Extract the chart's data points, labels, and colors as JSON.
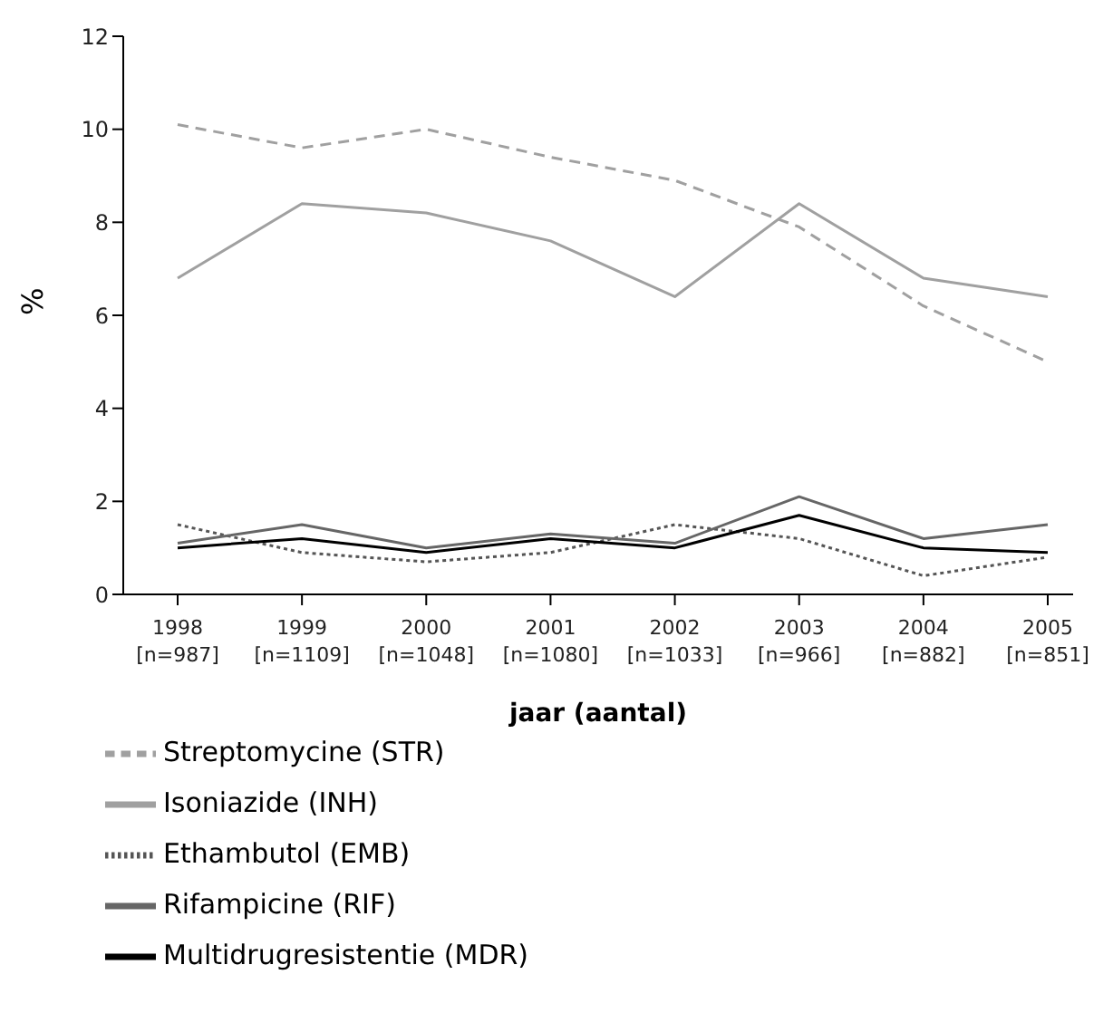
{
  "chart_data": {
    "type": "line",
    "xlabel": "jaar (aantal)",
    "ylabel": "%",
    "categories": [
      "1998\n[n=987]",
      "1999\n[n=1109]",
      "2000\n[n=1048]",
      "2001\n[n=1080]",
      "2002\n[n=1033]",
      "2003\n[n=966]",
      "2004\n[n=882]",
      "2005\n[n=851]"
    ],
    "series": [
      {
        "name": "Streptomycine (STR)",
        "color": "#a0a0a0",
        "line_style": "dashed",
        "values": [
          10.1,
          9.6,
          10.0,
          9.4,
          8.9,
          7.9,
          6.2,
          5.0
        ]
      },
      {
        "name": "Isoniazide (INH)",
        "color": "#a0a0a0",
        "line_style": "solid",
        "values": [
          6.8,
          8.4,
          8.2,
          7.6,
          6.4,
          8.4,
          6.8,
          6.4
        ]
      },
      {
        "name": "Ethambutol (EMB)",
        "color": "#555555",
        "line_style": "dotted",
        "values": [
          1.5,
          0.9,
          0.7,
          0.9,
          1.5,
          1.2,
          0.4,
          0.8
        ]
      },
      {
        "name": "Rifampicine (RIF)",
        "color": "#666666",
        "line_style": "solid",
        "values": [
          1.1,
          1.5,
          1.0,
          1.3,
          1.1,
          2.1,
          1.2,
          1.5
        ]
      },
      {
        "name": "Multidrugresistentie (MDR)",
        "color": "#000000",
        "line_style": "solid",
        "values": [
          1.0,
          1.2,
          0.9,
          1.2,
          1.0,
          1.7,
          1.0,
          0.9
        ]
      }
    ],
    "ylim": [
      0,
      12
    ],
    "yticks": [
      0,
      2,
      4,
      6,
      8,
      10,
      12
    ],
    "grid": false,
    "legend": "bottom",
    "marker": "none"
  }
}
